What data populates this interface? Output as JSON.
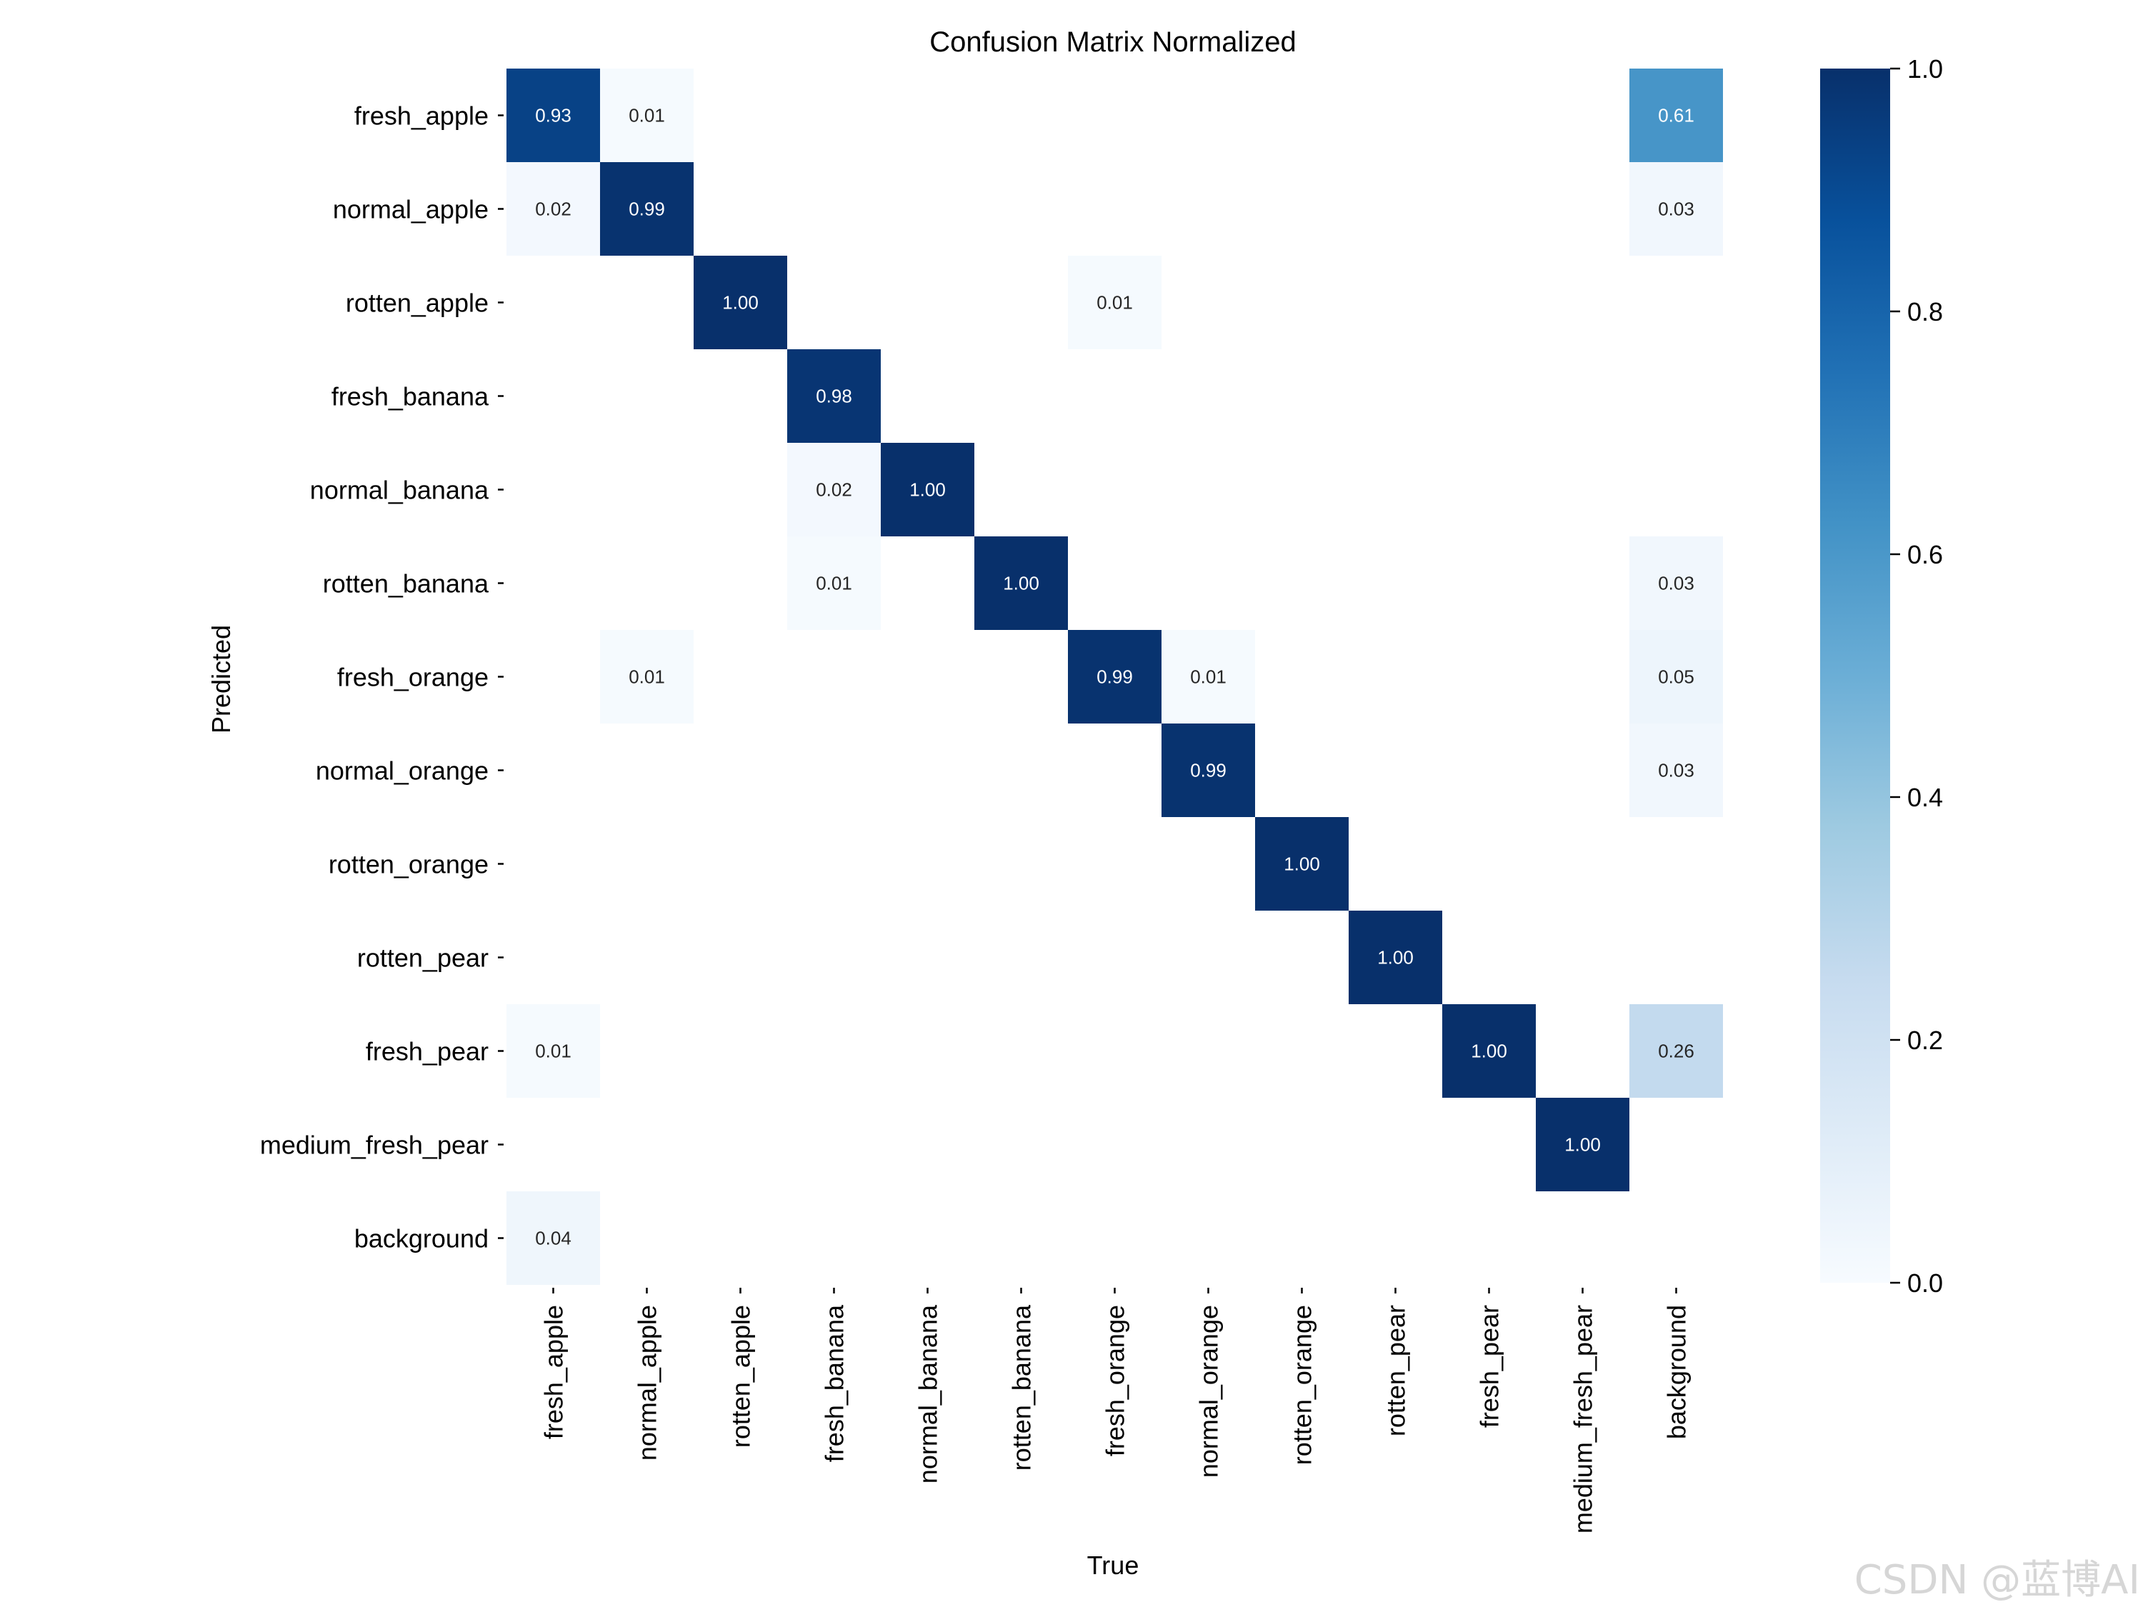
{
  "chart_data": {
    "type": "heatmap",
    "title": "Confusion Matrix Normalized",
    "xlabel": "True",
    "ylabel": "Predicted",
    "x_categories": [
      "fresh_apple",
      "normal_apple",
      "rotten_apple",
      "fresh_banana",
      "normal_banana",
      "rotten_banana",
      "fresh_orange",
      "normal_orange",
      "rotten_orange",
      "rotten_pear",
      "fresh_pear",
      "medium_fresh_pear",
      "background"
    ],
    "y_categories": [
      "fresh_apple",
      "normal_apple",
      "rotten_apple",
      "fresh_banana",
      "normal_banana",
      "rotten_banana",
      "fresh_orange",
      "normal_orange",
      "rotten_orange",
      "rotten_pear",
      "fresh_pear",
      "medium_fresh_pear",
      "background"
    ],
    "values": [
      [
        0.93,
        0.01,
        null,
        null,
        null,
        null,
        null,
        null,
        null,
        null,
        null,
        null,
        0.61
      ],
      [
        0.02,
        0.99,
        null,
        null,
        null,
        null,
        null,
        null,
        null,
        null,
        null,
        null,
        0.03
      ],
      [
        null,
        null,
        1.0,
        null,
        null,
        null,
        0.01,
        null,
        null,
        null,
        null,
        null,
        null
      ],
      [
        null,
        null,
        null,
        0.98,
        null,
        null,
        null,
        null,
        null,
        null,
        null,
        null,
        null
      ],
      [
        null,
        null,
        null,
        0.02,
        1.0,
        null,
        null,
        null,
        null,
        null,
        null,
        null,
        null
      ],
      [
        null,
        null,
        null,
        0.01,
        null,
        1.0,
        null,
        null,
        null,
        null,
        null,
        null,
        0.03
      ],
      [
        null,
        0.01,
        null,
        null,
        null,
        null,
        0.99,
        0.01,
        null,
        null,
        null,
        null,
        0.05
      ],
      [
        null,
        null,
        null,
        null,
        null,
        null,
        null,
        0.99,
        null,
        null,
        null,
        null,
        0.03
      ],
      [
        null,
        null,
        null,
        null,
        null,
        null,
        null,
        null,
        1.0,
        null,
        null,
        null,
        null
      ],
      [
        null,
        null,
        null,
        null,
        null,
        null,
        null,
        null,
        null,
        1.0,
        null,
        null,
        null
      ],
      [
        0.01,
        null,
        null,
        null,
        null,
        null,
        null,
        null,
        null,
        null,
        1.0,
        null,
        0.26
      ],
      [
        null,
        null,
        null,
        null,
        null,
        null,
        null,
        null,
        null,
        null,
        null,
        1.0,
        null
      ],
      [
        0.04,
        null,
        null,
        null,
        null,
        null,
        null,
        null,
        null,
        null,
        null,
        null,
        null
      ]
    ],
    "value_format": "0.00",
    "colormap": "Blues",
    "vmin": 0.0,
    "vmax": 1.0,
    "colorbar_ticks": [
      "0.0",
      "0.2",
      "0.4",
      "0.6",
      "0.8",
      "1.0"
    ],
    "colorbar_tick_values": [
      0.0,
      0.2,
      0.4,
      0.6,
      0.8,
      1.0
    ]
  },
  "watermark": "CSDN @蓝博AI"
}
